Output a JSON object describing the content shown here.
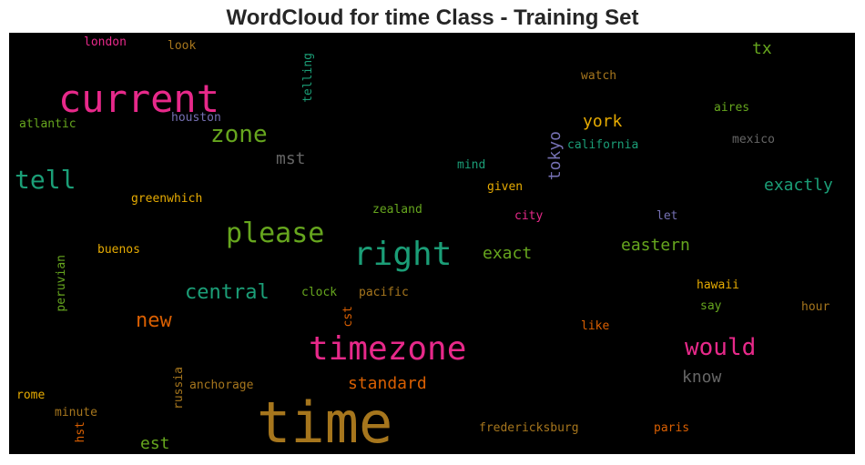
{
  "title": "WordCloud for time Class - Training Set",
  "colors": {
    "background": "#000000",
    "pink": "#e7298a",
    "green": "#66a61e",
    "teal": "#1b9e77",
    "orange": "#d95f02",
    "purple": "#7570b3",
    "gold": "#e6ab02",
    "brown": "#a6761d",
    "gray": "#666666"
  },
  "words": [
    {
      "text": "time",
      "color": "#a6761d"
    },
    {
      "text": "current",
      "color": "#e7298a"
    },
    {
      "text": "timezone",
      "color": "#e7298a"
    },
    {
      "text": "right",
      "color": "#1b9e77"
    },
    {
      "text": "please",
      "color": "#66a61e"
    },
    {
      "text": "tell",
      "color": "#1b9e77"
    },
    {
      "text": "zone",
      "color": "#66a61e"
    },
    {
      "text": "would",
      "color": "#e7298a"
    },
    {
      "text": "central",
      "color": "#1b9e77"
    },
    {
      "text": "new",
      "color": "#d95f02"
    },
    {
      "text": "exactly",
      "color": "#1b9e77"
    },
    {
      "text": "york",
      "color": "#e6ab02"
    },
    {
      "text": "eastern",
      "color": "#66a61e"
    },
    {
      "text": "exact",
      "color": "#66a61e"
    },
    {
      "text": "standard",
      "color": "#d95f02"
    },
    {
      "text": "know",
      "color": "#666666"
    },
    {
      "text": "mst",
      "color": "#666666"
    },
    {
      "text": "tokyo",
      "color": "#7570b3"
    },
    {
      "text": "est",
      "color": "#66a61e"
    },
    {
      "text": "tx",
      "color": "#66a61e"
    },
    {
      "text": "london",
      "color": "#e7298a"
    },
    {
      "text": "look",
      "color": "#a6761d"
    },
    {
      "text": "telling",
      "color": "#1b9e77"
    },
    {
      "text": "watch",
      "color": "#a6761d"
    },
    {
      "text": "atlantic",
      "color": "#66a61e"
    },
    {
      "text": "houston",
      "color": "#7570b3"
    },
    {
      "text": "aires",
      "color": "#66a61e"
    },
    {
      "text": "california",
      "color": "#1b9e77"
    },
    {
      "text": "mexico",
      "color": "#666666"
    },
    {
      "text": "mind",
      "color": "#1b9e77"
    },
    {
      "text": "given",
      "color": "#e6ab02"
    },
    {
      "text": "greenwhich",
      "color": "#e6ab02"
    },
    {
      "text": "zealand",
      "color": "#66a61e"
    },
    {
      "text": "city",
      "color": "#e7298a"
    },
    {
      "text": "let",
      "color": "#7570b3"
    },
    {
      "text": "buenos",
      "color": "#e6ab02"
    },
    {
      "text": "peruvian",
      "color": "#66a61e"
    },
    {
      "text": "clock",
      "color": "#66a61e"
    },
    {
      "text": "pacific",
      "color": "#a6761d"
    },
    {
      "text": "hawaii",
      "color": "#e6ab02"
    },
    {
      "text": "say",
      "color": "#66a61e"
    },
    {
      "text": "hour",
      "color": "#a6761d"
    },
    {
      "text": "cst",
      "color": "#d95f02"
    },
    {
      "text": "like",
      "color": "#d95f02"
    },
    {
      "text": "russia",
      "color": "#a6761d"
    },
    {
      "text": "anchorage",
      "color": "#a6761d"
    },
    {
      "text": "rome",
      "color": "#e6ab02"
    },
    {
      "text": "minute",
      "color": "#a6761d"
    },
    {
      "text": "hst",
      "color": "#d95f02"
    },
    {
      "text": "fredericksburg",
      "color": "#a6761d"
    },
    {
      "text": "paris",
      "color": "#d95f02"
    }
  ]
}
